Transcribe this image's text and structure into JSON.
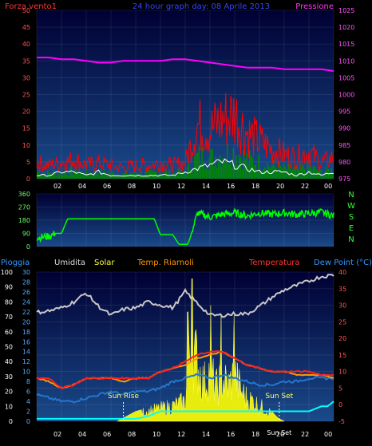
{
  "header": {
    "left_label": "Forza vento1",
    "title": "24 hour graph day: 08 Aprile 2013",
    "right_label": "Pressione"
  },
  "wind_panel": {
    "y_left_ticks": [
      "0",
      "5",
      "10",
      "15",
      "20",
      "25",
      "30",
      "35",
      "40",
      "45",
      "50"
    ],
    "y_right_ticks": [
      "975",
      "980",
      "985",
      "990",
      "995",
      "1000",
      "1005",
      "1010",
      "1015",
      "1020",
      "1025"
    ],
    "x_ticks": [
      "02",
      "04",
      "06",
      "08",
      "10",
      "12",
      "14",
      "16",
      "18",
      "20",
      "22",
      "00"
    ]
  },
  "dir_panel": {
    "y_ticks": [
      "0",
      "90",
      "180",
      "270",
      "360"
    ],
    "compass": [
      "N",
      "W",
      "S",
      "E",
      "N"
    ]
  },
  "lower_panel": {
    "labels": {
      "rain": "Pioggia",
      "humidity": "Umidita",
      "solar": "Solar",
      "temp_room": "Temp. Riarnoli",
      "temperature": "Temperatura",
      "dewpoint": "Dew Point (°C)"
    },
    "y_hum_ticks": [
      "0",
      "10",
      "20",
      "30",
      "40",
      "50",
      "60",
      "70",
      "80",
      "90",
      "100"
    ],
    "y_rain_ticks": [
      "0",
      "2",
      "4",
      "6",
      "8",
      "10",
      "12",
      "14",
      "16",
      "18",
      "20",
      "22",
      "24",
      "26",
      "28",
      "30"
    ],
    "y_temp_ticks": [
      "-5",
      "0",
      "5",
      "10",
      "15",
      "20",
      "25",
      "30",
      "35",
      "40"
    ],
    "x_ticks": [
      "02",
      "04",
      "06",
      "08",
      "10",
      "12",
      "14",
      "16",
      "18",
      "20",
      "22",
      "00"
    ],
    "sun_rise": "Sun Rise",
    "sun_set": "Sun Set",
    "sun_set_axis": "Sun Set"
  },
  "colors": {
    "background": "#000000",
    "plot_top": "#000044",
    "plot_bottom": "#1a4a8a",
    "pressure": "#ff00ff",
    "gust": "#ff0000",
    "wind": "#008800",
    "wind_avg": "#ffffff",
    "direction": "#00ff00",
    "humidity": "#c8c8c8",
    "temperature": "#ff2020",
    "temp_room": "#ff9900",
    "dewpoint": "#2277cc",
    "solar": "#ffff00",
    "rain": "#00ffff"
  },
  "chart_data": [
    {
      "type": "line",
      "title": "24 hour graph day: 08 Aprile 2013",
      "x_unit": "hour",
      "x_ticks": [
        "02",
        "04",
        "06",
        "08",
        "10",
        "12",
        "14",
        "16",
        "18",
        "20",
        "22",
        "00"
      ],
      "series": [
        {
          "name": "Pressione",
          "axis": "right",
          "ylim": [
            975,
            1025
          ],
          "x": [
            0,
            1,
            2,
            3,
            4,
            5,
            6,
            7,
            8,
            9,
            10,
            11,
            12,
            13,
            14,
            15,
            16,
            17,
            18,
            19,
            20,
            21,
            22,
            23,
            24
          ],
          "values": [
            1011,
            1011,
            1010.5,
            1010.5,
            1010,
            1009.5,
            1009.5,
            1010,
            1010,
            1010,
            1010,
            1010.5,
            1010.5,
            1010,
            1009.5,
            1009,
            1008.5,
            1008,
            1008,
            1008,
            1007.5,
            1007.5,
            1007.5,
            1007.5,
            1007
          ]
        },
        {
          "name": "Forza vento1",
          "axis": "left",
          "ylim": [
            0,
            50
          ],
          "x": [
            0,
            1,
            2,
            3,
            4,
            5,
            6,
            7,
            8,
            9,
            10,
            11,
            12,
            13,
            14,
            15,
            16,
            17,
            18,
            19,
            20,
            21,
            22,
            23,
            24
          ],
          "values": [
            6,
            5,
            6,
            7,
            5,
            6,
            5,
            4,
            5,
            5,
            6,
            5,
            6,
            20,
            18,
            22,
            24,
            17,
            14,
            11,
            9,
            8,
            10,
            6,
            8
          ]
        },
        {
          "name": "Vento medio",
          "axis": "left",
          "ylim": [
            0,
            50
          ],
          "x": [
            0,
            1,
            2,
            3,
            4,
            5,
            6,
            7,
            8,
            9,
            10,
            11,
            12,
            13,
            14,
            15,
            16,
            17,
            18,
            19,
            20,
            21,
            22,
            23,
            24
          ],
          "values": [
            1,
            1,
            2,
            2,
            1,
            2,
            1,
            1,
            1,
            1,
            1,
            1,
            2,
            3,
            4,
            5,
            4,
            3,
            2,
            2,
            2,
            1,
            2,
            1,
            2
          ]
        }
      ]
    },
    {
      "type": "line",
      "x_unit": "hour",
      "ylim": [
        0,
        360
      ],
      "series": [
        {
          "name": "Direzione",
          "x": [
            0,
            1,
            1.5,
            2,
            2.5,
            3,
            4,
            5,
            6,
            7,
            7.5,
            8,
            9,
            9.5,
            10,
            11,
            11.5,
            12,
            12.2,
            12.4,
            13,
            14,
            15,
            16,
            17,
            18,
            19,
            20,
            21,
            22,
            23,
            24
          ],
          "values": [
            60,
            70,
            90,
            90,
            190,
            190,
            190,
            190,
            190,
            190,
            190,
            190,
            190,
            190,
            80,
            80,
            15,
            15,
            15,
            60,
            230,
            200,
            220,
            230,
            210,
            230,
            220,
            230,
            220,
            225,
            235,
            210
          ]
        }
      ]
    },
    {
      "type": "line",
      "x_unit": "hour",
      "series": [
        {
          "name": "Umidita",
          "axis": "left",
          "ylim": [
            0,
            100
          ],
          "x": [
            0,
            1,
            2,
            3,
            4,
            5,
            6,
            7,
            8,
            9,
            10,
            11,
            12,
            13,
            14,
            15,
            16,
            17,
            18,
            19,
            20,
            21,
            22,
            23,
            24
          ],
          "values": [
            73,
            74,
            76,
            80,
            86,
            77,
            71,
            75,
            76,
            80,
            78,
            76,
            87,
            79,
            71,
            71,
            72,
            72,
            77,
            83,
            88,
            91,
            94,
            97,
            98
          ]
        },
        {
          "name": "Temperatura",
          "axis": "right",
          "ylim": [
            -5,
            40
          ],
          "x": [
            0,
            1,
            2,
            3,
            4,
            5,
            6,
            7,
            8,
            9,
            10,
            11,
            12,
            13,
            14,
            15,
            16,
            17,
            18,
            19,
            20,
            21,
            22,
            23,
            24
          ],
          "values": [
            8,
            8,
            5,
            6,
            8,
            8,
            8,
            8,
            8,
            8,
            10,
            11,
            13,
            15,
            16,
            16,
            14,
            12,
            11,
            10,
            10,
            10,
            10,
            9,
            9
          ]
        },
        {
          "name": "Temp. Riarnoli",
          "axis": "right",
          "ylim": [
            -5,
            40
          ],
          "x": [
            0,
            1,
            2,
            3,
            4,
            5,
            6,
            7,
            8,
            9,
            10,
            11,
            12,
            13,
            14,
            15,
            16,
            17,
            18,
            19,
            20,
            21,
            22,
            23,
            24
          ],
          "values": [
            8,
            7,
            5,
            6,
            8,
            8,
            8,
            7,
            8,
            8,
            10,
            11,
            12,
            14,
            15,
            16,
            14,
            12,
            11,
            10,
            10,
            9,
            9,
            9,
            8
          ]
        },
        {
          "name": "Dew Point (°C)",
          "axis": "right",
          "ylim": [
            -5,
            40
          ],
          "x": [
            0,
            1,
            2,
            3,
            4,
            5,
            6,
            7,
            8,
            9,
            10,
            11,
            12,
            13,
            14,
            15,
            16,
            17,
            18,
            19,
            20,
            21,
            22,
            23,
            24
          ],
          "values": [
            3,
            2,
            1,
            1,
            2,
            3,
            4,
            3,
            4,
            4,
            5,
            7,
            8,
            9,
            8,
            9,
            8,
            7,
            6,
            6,
            7,
            7,
            8,
            8,
            8
          ]
        },
        {
          "name": "Solar",
          "axis": "right",
          "ylim": [
            -5,
            40
          ],
          "type": "area",
          "x": [
            0,
            6.5,
            7,
            8,
            9,
            10,
            11,
            12,
            12.5,
            13,
            13.5,
            14,
            14.5,
            15,
            15.5,
            16,
            16.5,
            17,
            17.5,
            18,
            18.5,
            19,
            19.5,
            20,
            24
          ],
          "values": [
            -5,
            -5,
            -4,
            -2,
            -1,
            0,
            1,
            3,
            25,
            18,
            10,
            15,
            8,
            12,
            9,
            14,
            7,
            4,
            3,
            1,
            0,
            -2,
            -4,
            -5,
            -5
          ]
        },
        {
          "name": "Pioggia",
          "axis": "middle",
          "ylim": [
            0,
            30
          ],
          "x": [
            0,
            6,
            7,
            8,
            9,
            10,
            11,
            12,
            13,
            14,
            15,
            16,
            17,
            18,
            19,
            20,
            21,
            22,
            23,
            23.5,
            24
          ],
          "values": [
            0.5,
            0.5,
            0.5,
            0.5,
            1,
            2,
            2,
            2,
            2,
            2,
            2,
            2,
            2,
            2,
            2,
            2,
            2,
            2,
            3,
            3,
            4
          ]
        }
      ]
    }
  ]
}
